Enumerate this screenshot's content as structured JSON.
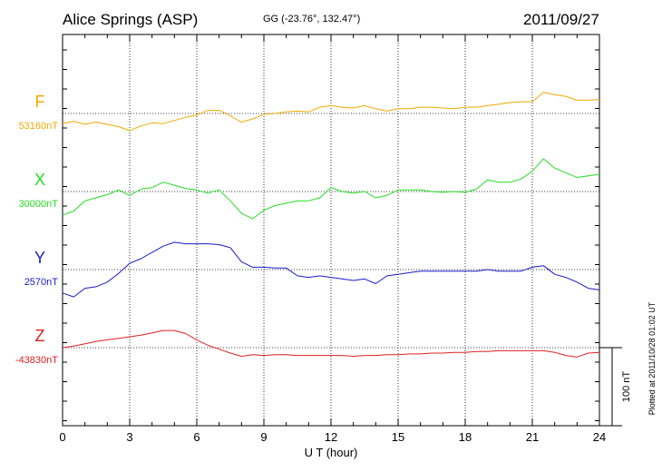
{
  "header": {
    "station": "Alice Springs (ASP)",
    "coords": "GG (-23.76°, 132.47°)",
    "date": "2011/09/27"
  },
  "footer": {
    "plotted_note": "Plotted at 2011/10/28 01:02 UT",
    "scale_label": "100 nT"
  },
  "colors": {
    "F": "#f2a800",
    "X": "#22dd22",
    "Y": "#1a1acc",
    "Z": "#e02020"
  },
  "chart_data": {
    "type": "line",
    "title": "Alice Springs (ASP)",
    "xlabel": "U T (hour)",
    "ylabel": "",
    "xlim": [
      0,
      24
    ],
    "xticks": [
      0,
      3,
      6,
      9,
      12,
      15,
      18,
      21,
      24
    ],
    "xtick_labels": [
      "0",
      "3",
      "6",
      "9",
      "12",
      "15",
      "18",
      "21",
      "24"
    ],
    "scale_bar_nT": 100,
    "grid": true,
    "series": [
      {
        "name": "F",
        "baseline_label": "53160nT",
        "color": "#f2a800",
        "x": [
          0,
          0.5,
          1,
          1.5,
          2,
          2.5,
          3,
          3.5,
          4,
          4.5,
          5,
          5.5,
          6,
          6.5,
          7,
          7.5,
          8,
          8.5,
          9,
          9.5,
          10,
          10.5,
          11,
          11.5,
          12,
          12.5,
          13,
          13.5,
          14,
          14.5,
          15,
          15.5,
          16,
          16.5,
          17,
          17.5,
          18,
          18.5,
          19,
          19.5,
          20,
          20.5,
          21,
          21.5,
          22,
          22.5,
          23,
          23.5,
          24
        ],
        "values": [
          -13,
          -10,
          -14,
          -11,
          -14,
          -17,
          -22,
          -16,
          -12,
          -13,
          -9,
          -5,
          -2,
          4,
          4,
          -3,
          -11,
          -7,
          -1,
          0,
          2,
          3,
          2,
          8,
          10,
          8,
          7,
          10,
          6,
          3,
          6,
          6,
          8,
          8,
          7,
          6,
          8,
          8,
          10,
          12,
          14,
          15,
          15,
          27,
          24,
          22,
          17,
          17,
          18
        ]
      },
      {
        "name": "X",
        "baseline_label": "30000nT",
        "color": "#22dd22",
        "x": [
          0,
          0.5,
          1,
          1.5,
          2,
          2.5,
          3,
          3.5,
          4,
          4.5,
          5,
          5.5,
          6,
          6.5,
          7,
          7.5,
          8,
          8.5,
          9,
          9.5,
          10,
          10.5,
          11,
          11.5,
          12,
          12.5,
          13,
          13.5,
          14,
          14.5,
          15,
          15.5,
          16,
          16.5,
          17,
          17.5,
          18,
          18.5,
          19,
          19.5,
          20,
          20.5,
          21,
          21.5,
          22,
          22.5,
          23,
          23.5,
          24
        ],
        "values": [
          -30,
          -25,
          -12,
          -8,
          -4,
          2,
          -5,
          3,
          5,
          12,
          8,
          4,
          2,
          -2,
          2,
          -12,
          -28,
          -35,
          -24,
          -18,
          -15,
          -12,
          -12,
          -8,
          5,
          0,
          -2,
          0,
          -8,
          -5,
          2,
          2,
          2,
          0,
          -1,
          0,
          -1,
          3,
          15,
          12,
          12,
          16,
          26,
          42,
          30,
          24,
          18,
          20,
          22
        ]
      },
      {
        "name": "Y",
        "baseline_label": "2570nT",
        "color": "#1a1acc",
        "x": [
          0,
          0.5,
          1,
          1.5,
          2,
          2.5,
          3,
          3.5,
          4,
          4.5,
          5,
          5.5,
          6,
          6.5,
          7,
          7.5,
          8,
          8.5,
          9,
          9.5,
          10,
          10.5,
          11,
          11.5,
          12,
          12.5,
          13,
          13.5,
          14,
          14.5,
          15,
          15.5,
          16,
          16.5,
          17,
          17.5,
          18,
          18.5,
          19,
          19.5,
          20,
          20.5,
          21,
          21.5,
          22,
          22.5,
          23,
          23.5,
          24
        ],
        "values": [
          -30,
          -35,
          -24,
          -22,
          -16,
          -5,
          8,
          14,
          22,
          30,
          35,
          33,
          33,
          33,
          32,
          28,
          10,
          3,
          3,
          2,
          2,
          -8,
          -10,
          -8,
          -10,
          -12,
          -14,
          -12,
          -18,
          -8,
          -6,
          -4,
          -2,
          -2,
          -2,
          -2,
          -2,
          -2,
          0,
          -2,
          -2,
          -2,
          3,
          5,
          -6,
          -10,
          -16,
          -24,
          -26
        ]
      },
      {
        "name": "Z",
        "baseline_label": "-43830nT",
        "color": "#e02020",
        "x": [
          0,
          0.5,
          1,
          1.5,
          2,
          2.5,
          3,
          3.5,
          4,
          4.5,
          5,
          5.5,
          6,
          6.5,
          7,
          7.5,
          8,
          8.5,
          9,
          9.5,
          10,
          10.5,
          11,
          11.5,
          12,
          12.5,
          13,
          13.5,
          14,
          14.5,
          15,
          15.5,
          16,
          16.5,
          17,
          17.5,
          18,
          18.5,
          19,
          19.5,
          20,
          20.5,
          21,
          21.5,
          22,
          22.5,
          23,
          23.5,
          24
        ],
        "values": [
          0,
          2,
          5,
          8,
          10,
          12,
          14,
          16,
          19,
          22,
          22,
          18,
          10,
          3,
          -2,
          -7,
          -11,
          -9,
          -10,
          -9,
          -9,
          -10,
          -10,
          -10,
          -10,
          -10,
          -11,
          -10,
          -10,
          -9,
          -9,
          -8,
          -8,
          -7,
          -7,
          -6,
          -6,
          -5,
          -5,
          -4,
          -4,
          -4,
          -4,
          -4,
          -6,
          -10,
          -12,
          -7,
          -6
        ]
      }
    ]
  }
}
